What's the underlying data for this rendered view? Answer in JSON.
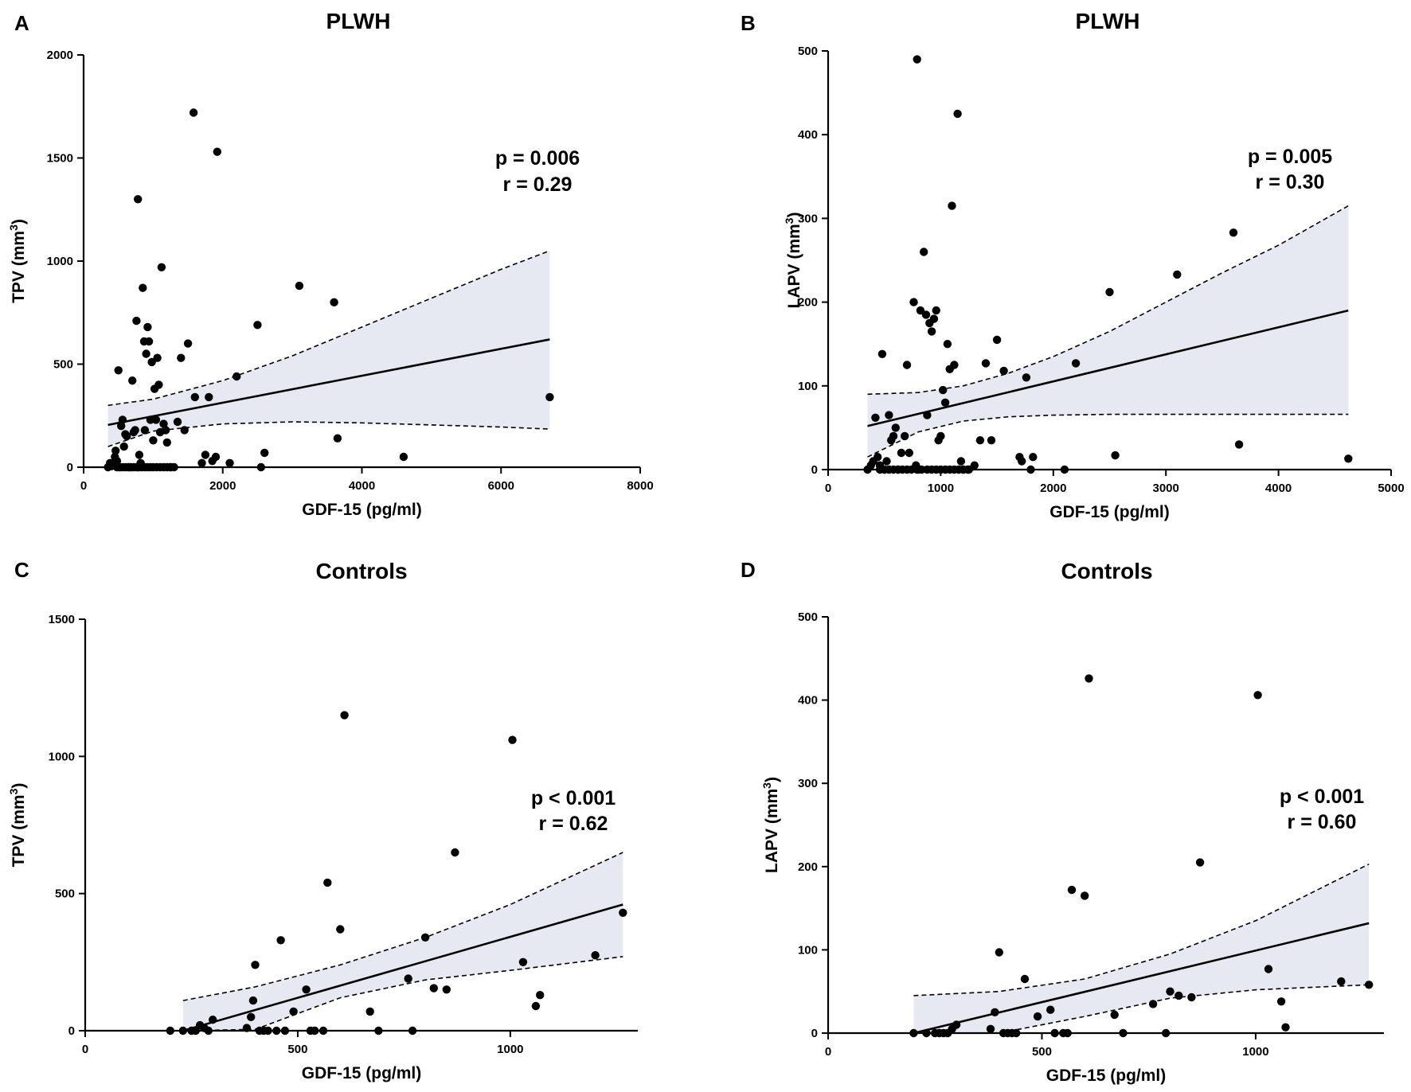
{
  "chart_data": [
    {
      "type": "scatter",
      "panel": "A",
      "title": "PLWH",
      "xlabel": "GDF-15 (pg/ml)",
      "ylabel": "TPV (mm",
      "ylabel_sup": "3",
      "ylabel_end": ")",
      "stat_p": "p = 0.006",
      "stat_r": "r = 0.29",
      "xlim": [
        0,
        8000
      ],
      "ylim": [
        0,
        2000
      ],
      "xticks": [
        0,
        2000,
        4000,
        6000,
        8000
      ],
      "yticks": [
        0,
        500,
        1000,
        1500,
        2000
      ],
      "fit": {
        "x": [
          350,
          6700
        ],
        "y": [
          205,
          620
        ]
      },
      "ci_upper": {
        "x": [
          350,
          1000,
          2000,
          3000,
          4000,
          5000,
          6000,
          6700
        ],
        "y": [
          300,
          330,
          420,
          540,
          680,
          820,
          960,
          1050
        ]
      },
      "ci_lower": {
        "x": [
          350,
          1000,
          2000,
          3000,
          4000,
          5000,
          6000,
          6700
        ],
        "y": [
          100,
          175,
          210,
          220,
          215,
          205,
          195,
          185
        ]
      },
      "points": {
        "x": [
          350,
          380,
          400,
          420,
          450,
          460,
          480,
          500,
          520,
          540,
          560,
          580,
          600,
          620,
          650,
          680,
          700,
          720,
          740,
          760,
          780,
          800,
          820,
          850,
          870,
          880,
          900,
          920,
          940,
          960,
          980,
          1000,
          1020,
          1040,
          1060,
          1080,
          1100,
          1120,
          1150,
          1180,
          1200,
          1250,
          1300,
          1350,
          1400,
          1450,
          1500,
          1600,
          1700,
          1750,
          1800,
          1850,
          1900,
          2100,
          2200,
          2500,
          2550,
          2600,
          3100,
          3600,
          3650,
          4600,
          6700,
          480,
          520,
          560,
          600,
          640,
          680,
          720,
          760,
          800,
          840,
          880,
          920,
          960,
          1000,
          1050,
          1100,
          1150,
          1200,
          1250,
          1580,
          1920,
          780
        ],
        "y": [
          0,
          20,
          5,
          10,
          50,
          80,
          30,
          470,
          0,
          200,
          230,
          100,
          160,
          150,
          0,
          0,
          420,
          170,
          180,
          710,
          0,
          60,
          20,
          870,
          610,
          180,
          550,
          680,
          610,
          230,
          510,
          130,
          380,
          230,
          530,
          400,
          170,
          970,
          210,
          180,
          120,
          0,
          0,
          220,
          530,
          180,
          600,
          340,
          20,
          60,
          340,
          30,
          50,
          20,
          440,
          690,
          0,
          70,
          880,
          800,
          140,
          50,
          340,
          0,
          0,
          0,
          0,
          0,
          0,
          0,
          0,
          0,
          0,
          0,
          0,
          0,
          0,
          0,
          0,
          0,
          0,
          0,
          1720,
          1530,
          1300
        ]
      }
    },
    {
      "type": "scatter",
      "panel": "B",
      "title": "PLWH",
      "xlabel": "GDF-15 (pg/ml)",
      "ylabel": "LAPV (mm",
      "ylabel_sup": "3",
      "ylabel_end": ")",
      "stat_p": "p = 0.005",
      "stat_r": "r = 0.30",
      "xlim": [
        0,
        5000
      ],
      "ylim": [
        0,
        500
      ],
      "xticks": [
        0,
        1000,
        2000,
        3000,
        4000,
        5000
      ],
      "yticks": [
        0,
        100,
        200,
        300,
        400,
        500
      ],
      "fit": {
        "x": [
          350,
          4620
        ],
        "y": [
          52,
          190
        ]
      },
      "ci_upper": {
        "x": [
          350,
          800,
          1200,
          1600,
          2000,
          2500,
          3000,
          3500,
          4000,
          4620
        ],
        "y": [
          90,
          92,
          100,
          115,
          135,
          165,
          200,
          235,
          268,
          315
        ]
      },
      "ci_lower": {
        "x": [
          350,
          800,
          1200,
          1600,
          2000,
          2500,
          3000,
          3500,
          4000,
          4620
        ],
        "y": [
          15,
          45,
          58,
          63,
          65,
          66,
          66,
          66,
          66,
          66
        ]
      },
      "points": {
        "x": [
          350,
          380,
          400,
          420,
          440,
          460,
          480,
          500,
          520,
          540,
          560,
          580,
          600,
          620,
          650,
          680,
          700,
          720,
          760,
          780,
          800,
          820,
          850,
          870,
          880,
          900,
          920,
          940,
          960,
          980,
          1000,
          1020,
          1040,
          1060,
          1080,
          1100,
          1120,
          1150,
          1180,
          1200,
          1250,
          1300,
          1350,
          1400,
          1450,
          1500,
          1560,
          1700,
          1720,
          1760,
          1800,
          1820,
          2100,
          2200,
          2500,
          2550,
          3100,
          3600,
          3650,
          4620,
          460,
          500,
          540,
          580,
          620,
          660,
          700,
          740,
          790,
          830,
          880,
          920,
          960,
          1000,
          1040,
          1080,
          1120,
          1160,
          1200,
          1240
        ],
        "y": [
          0,
          5,
          10,
          62,
          15,
          5,
          138,
          0,
          10,
          65,
          35,
          40,
          50,
          0,
          20,
          40,
          125,
          20,
          200,
          5,
          0,
          190,
          260,
          185,
          65,
          175,
          165,
          180,
          190,
          35,
          40,
          95,
          80,
          150,
          120,
          315,
          125,
          425,
          10,
          0,
          0,
          5,
          35,
          127,
          35,
          155,
          118,
          15,
          10,
          110,
          0,
          15,
          0,
          127,
          212,
          17,
          233,
          283,
          30,
          13,
          0,
          0,
          0,
          0,
          0,
          0,
          0,
          0,
          0,
          0,
          0,
          0,
          0,
          0,
          0,
          0,
          0,
          0,
          0,
          0
        ]
      },
      "extra_point": {
        "x": 790,
        "y": 490
      }
    },
    {
      "type": "scatter",
      "panel": "C",
      "title": "Controls",
      "xlabel": "GDF-15 (pg/ml)",
      "ylabel": "TPV (mm",
      "ylabel_sup": "3",
      "ylabel_end": ")",
      "stat_p": "p < 0.001",
      "stat_r": "r = 0.62",
      "xlim": [
        0,
        1300
      ],
      "ylim": [
        0,
        1500
      ],
      "xticks": [
        0,
        500,
        1000
      ],
      "yticks": [
        0,
        500,
        1000,
        1500
      ],
      "fit": {
        "x": [
          230,
          1265
        ],
        "y": [
          0,
          460
        ]
      },
      "ci_upper": {
        "x": [
          230,
          400,
          600,
          800,
          1000,
          1265
        ],
        "y": [
          110,
          160,
          240,
          340,
          460,
          650
        ]
      },
      "ci_lower": {
        "x": [
          230,
          400,
          600,
          800,
          1000,
          1265
        ],
        "y": [
          -30,
          5,
          120,
          185,
          220,
          270
        ]
      },
      "points": {
        "x": [
          200,
          230,
          250,
          260,
          270,
          280,
          290,
          300,
          380,
          390,
          395,
          400,
          410,
          420,
          430,
          450,
          460,
          470,
          490,
          520,
          530,
          540,
          560,
          570,
          600,
          610,
          670,
          690,
          760,
          770,
          800,
          820,
          850,
          870,
          1005,
          1030,
          1060,
          1070,
          1200,
          1265
        ],
        "y": [
          0,
          0,
          0,
          0,
          20,
          10,
          0,
          40,
          10,
          50,
          110,
          240,
          0,
          0,
          0,
          0,
          330,
          0,
          70,
          150,
          0,
          0,
          0,
          540,
          370,
          1150,
          70,
          0,
          190,
          0,
          340,
          155,
          150,
          650,
          1060,
          250,
          90,
          130,
          275,
          430
        ]
      }
    },
    {
      "type": "scatter",
      "panel": "D",
      "title": "Controls",
      "xlabel": "GDF-15 (pg/ml)",
      "ylabel": "LAPV (mm",
      "ylabel_sup": "3",
      "ylabel_end": ")",
      "stat_p": "p < 0.001",
      "stat_r": "r = 0.60",
      "xlim": [
        0,
        1300
      ],
      "ylim": [
        0,
        500
      ],
      "xticks": [
        0,
        500,
        1000
      ],
      "yticks": [
        0,
        100,
        200,
        300,
        400,
        500
      ],
      "fit": {
        "x": [
          200,
          1265
        ],
        "y": [
          0,
          132
        ]
      },
      "ci_upper": {
        "x": [
          200,
          400,
          600,
          800,
          1000,
          1265
        ],
        "y": [
          45,
          50,
          65,
          95,
          135,
          203
        ]
      },
      "ci_lower": {
        "x": [
          200,
          400,
          600,
          800,
          1000,
          1265
        ],
        "y": [
          -25,
          -10,
          20,
          42,
          52,
          58
        ]
      },
      "points": {
        "x": [
          200,
          230,
          250,
          260,
          270,
          280,
          290,
          300,
          380,
          390,
          400,
          410,
          420,
          430,
          440,
          460,
          490,
          520,
          530,
          550,
          560,
          570,
          600,
          610,
          670,
          690,
          760,
          790,
          800,
          820,
          850,
          870,
          1005,
          1030,
          1060,
          1070,
          1200,
          1265
        ],
        "y": [
          0,
          0,
          0,
          0,
          0,
          0,
          5,
          10,
          5,
          25,
          97,
          0,
          0,
          0,
          0,
          65,
          20,
          28,
          0,
          0,
          0,
          172,
          165,
          426,
          22,
          0,
          35,
          0,
          50,
          45,
          43,
          205,
          406,
          77,
          38,
          7,
          62,
          58
        ]
      }
    }
  ]
}
